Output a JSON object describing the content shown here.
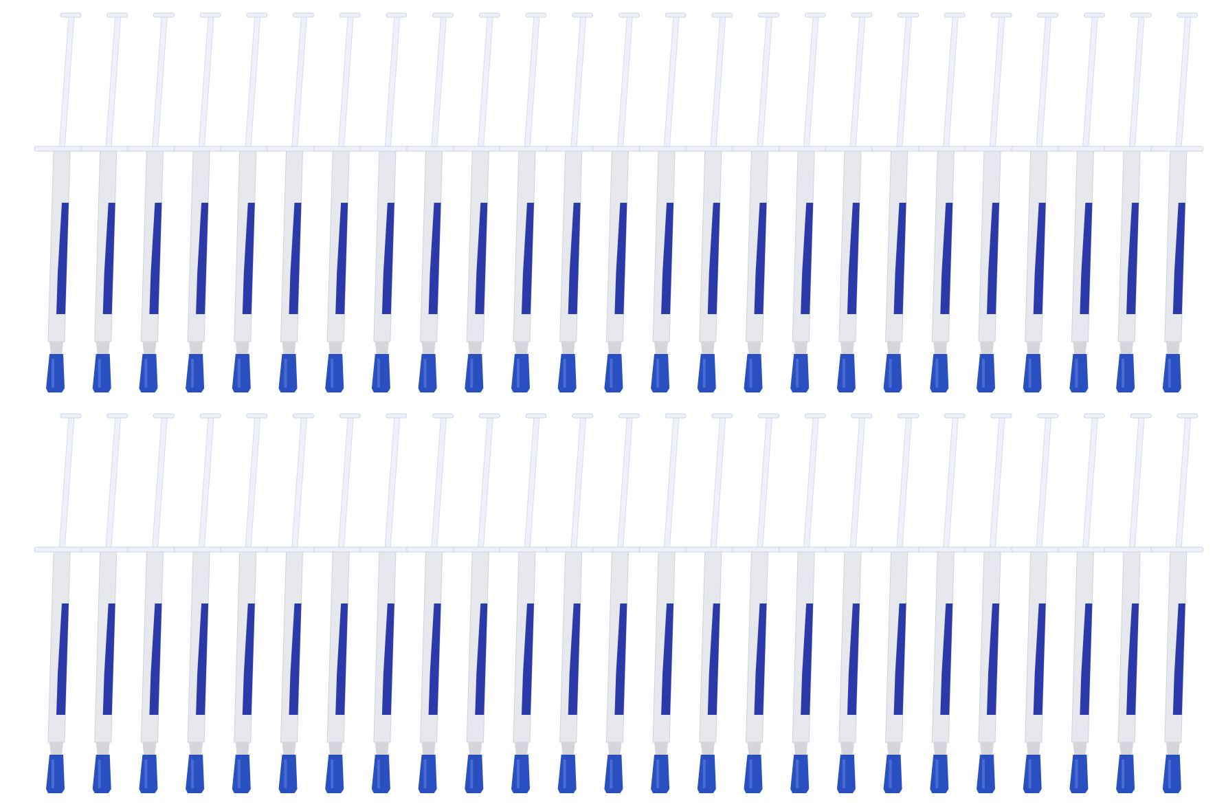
{
  "photo": {
    "subject": "syringes",
    "rows": 2,
    "per_row": 25,
    "colors": {
      "background": "#ffffff",
      "plunger": "#eef1fa",
      "barrel": "#e6e8ee",
      "stripe": "#2b3aa8",
      "cap": "#2a4fc0",
      "tip": "#d4d6dc"
    }
  }
}
